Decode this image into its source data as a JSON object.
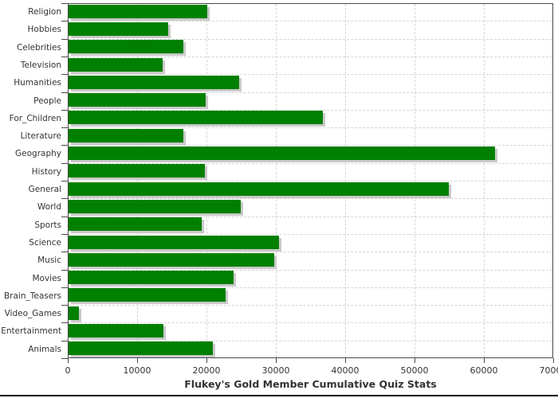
{
  "chart_data": {
    "type": "bar",
    "orientation": "horizontal",
    "title": "Flukey's Gold Member Cumulative Quiz Stats",
    "categories": [
      "Religion",
      "Hobbies",
      "Celebrities",
      "Television",
      "Humanities",
      "People",
      "For_Children",
      "Literature",
      "Geography",
      "History",
      "General",
      "World",
      "Sports",
      "Science",
      "Music",
      "Movies",
      "Brain_Teasers",
      "Video_Games",
      "Entertainment",
      "Animals"
    ],
    "values": [
      20000,
      14400,
      16600,
      13600,
      24600,
      19800,
      36700,
      16600,
      61500,
      19700,
      54800,
      24800,
      19200,
      30400,
      29700,
      23800,
      22600,
      1500,
      13700,
      20800
    ],
    "xlabel": "",
    "ylabel": "",
    "xlim": [
      0,
      70000
    ],
    "x_ticks": [
      0,
      10000,
      20000,
      30000,
      40000,
      50000,
      60000,
      70000
    ],
    "grid": "dashed",
    "legend": "none",
    "colors": {
      "bar": "#008000",
      "bar_shadow": "#c9c9c9",
      "gridline": "#d4d4d4",
      "axis": "#4a4a4a",
      "text": "#333333",
      "background": "#ffffff",
      "window_border": "#000000"
    }
  }
}
